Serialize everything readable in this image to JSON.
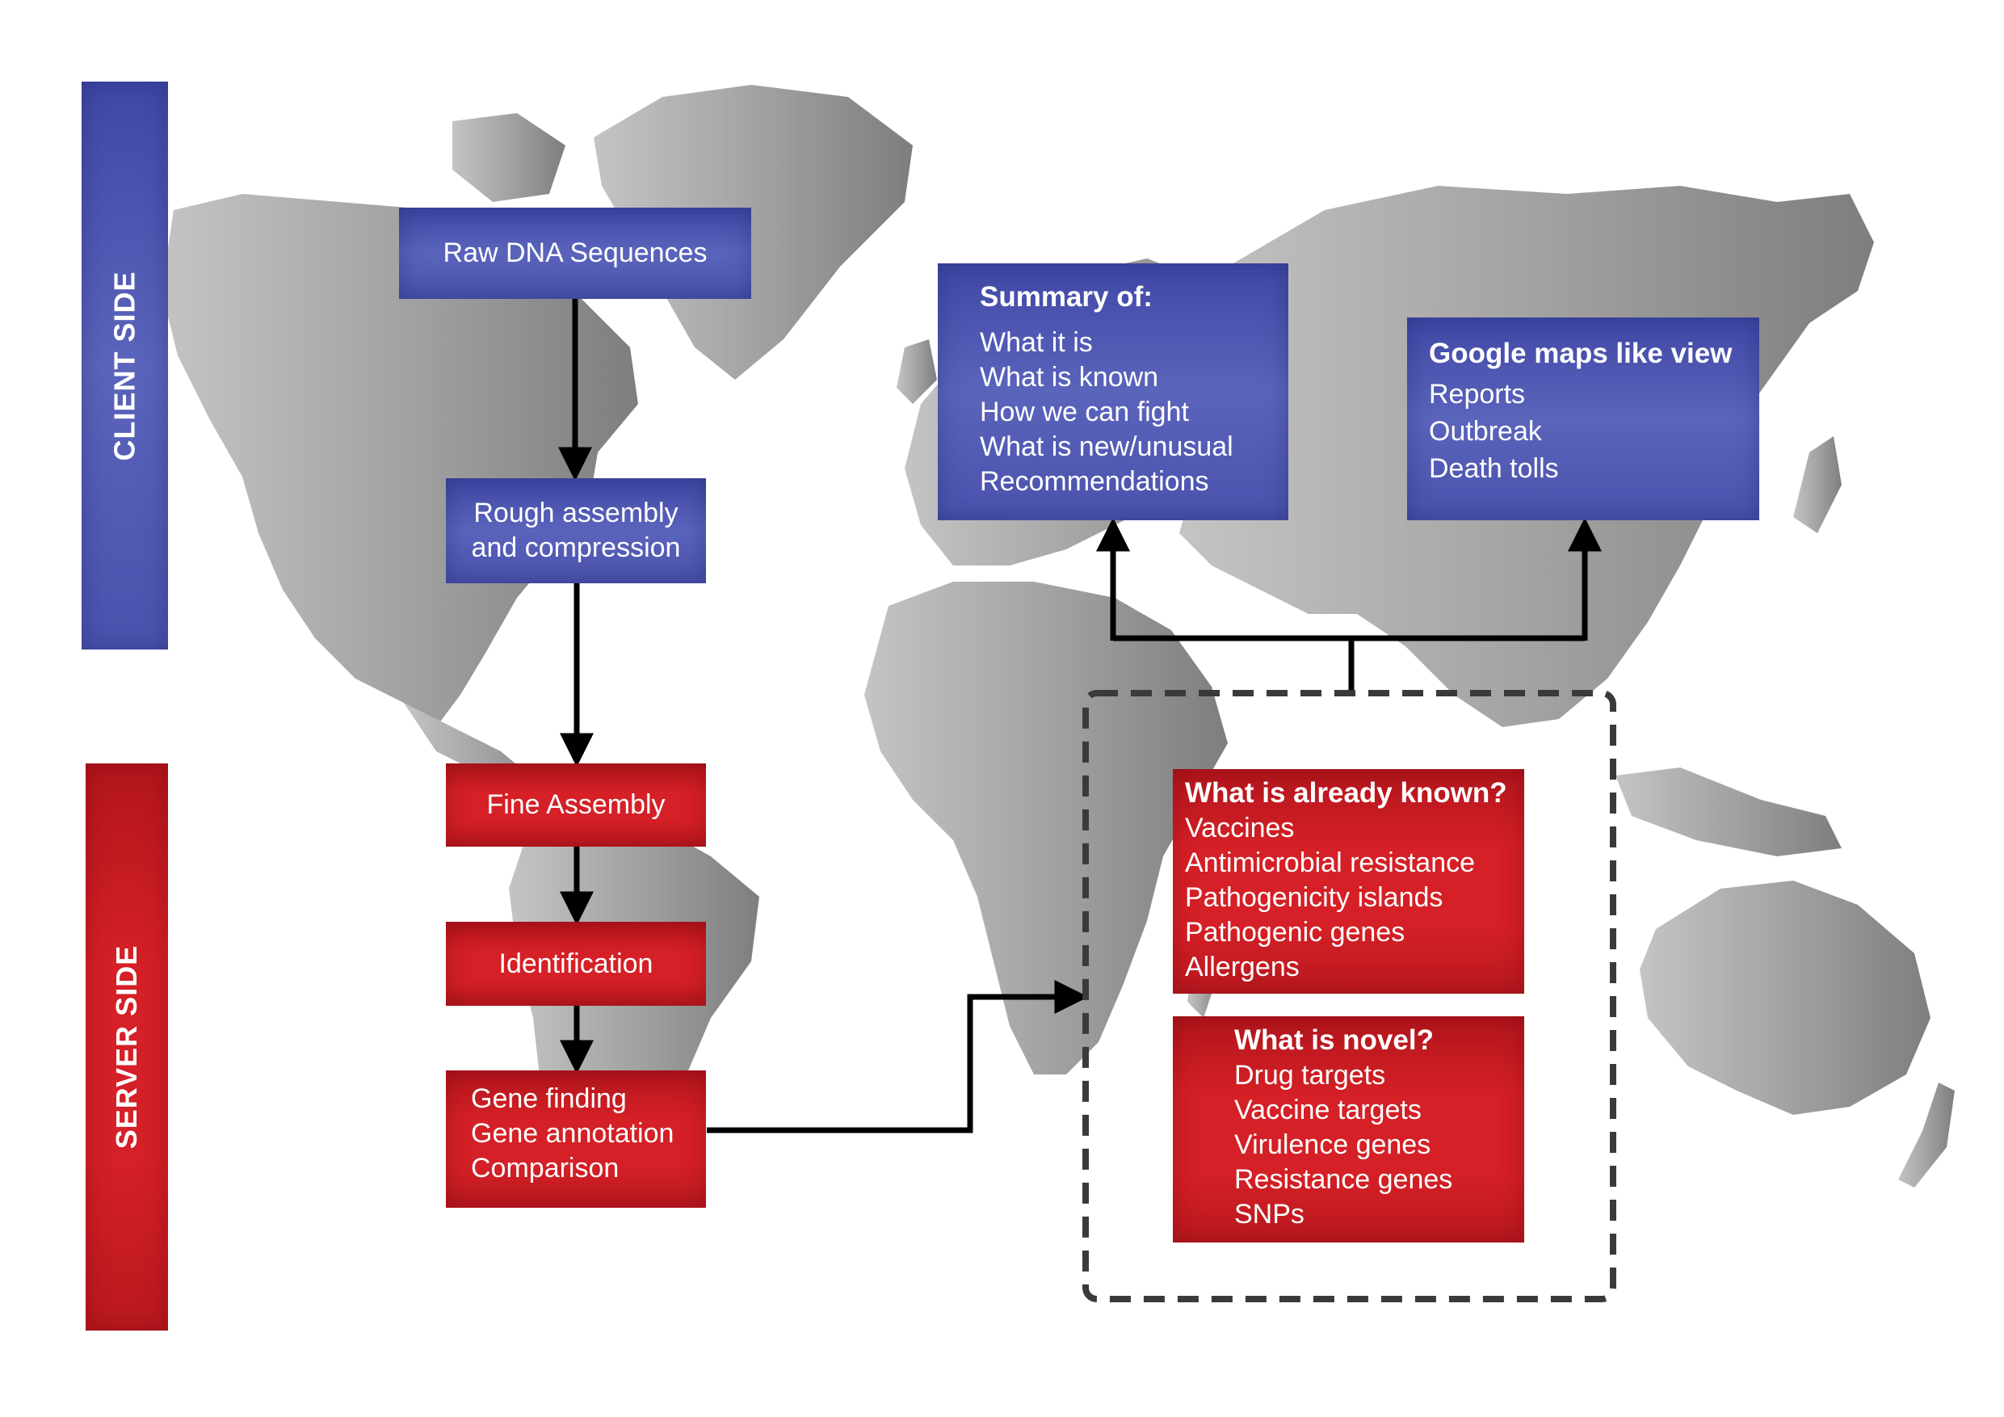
{
  "sides": {
    "client": "CLIENT SIDE",
    "server": "SERVER SIDE"
  },
  "pipeline": {
    "raw": "Raw DNA Sequences",
    "rough": [
      "Rough assembly",
      "and compression"
    ],
    "fine": "Fine Assembly",
    "identification": "Identification",
    "gene": [
      "Gene finding",
      "Gene annotation",
      "Comparison"
    ]
  },
  "summary": {
    "title": "Summary of:",
    "items": [
      "What it is",
      "What is known",
      "How we can fight",
      "What is new/unusual",
      "Recommendations"
    ]
  },
  "maps_view": {
    "title": "Google maps like view",
    "items": [
      "Reports",
      "Outbreak",
      "Death tolls"
    ]
  },
  "known": {
    "title": "What is already known?",
    "items": [
      "Vaccines",
      "Antimicrobial resistance",
      "Pathogenicity islands",
      "Pathogenic genes",
      "Allergens"
    ]
  },
  "novel": {
    "title": "What is novel?",
    "items": [
      "Drug targets",
      "Vaccine targets",
      "Virulence genes",
      "Resistance genes",
      "SNPs"
    ]
  },
  "colors": {
    "client_blue": "#4a52ad",
    "server_red": "#d42026",
    "map_gray": "#9a9a9a",
    "arrow": "#000000",
    "dashed_border": "#3a3a3a"
  }
}
